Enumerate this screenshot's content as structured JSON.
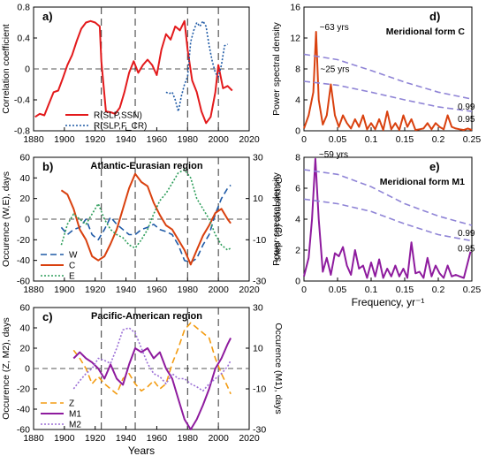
{
  "figure": {
    "panels": [
      {
        "id": "a",
        "tag": "a)"
      },
      {
        "id": "b",
        "tag": "b)"
      },
      {
        "id": "c",
        "tag": "c)"
      },
      {
        "id": "d",
        "tag": "d)"
      },
      {
        "id": "e",
        "tag": "e)"
      }
    ],
    "vlines": [
      1924,
      1946,
      1980,
      2000
    ],
    "colors": {
      "red": "#e31a1c",
      "orange_red": "#d9410f",
      "blue": "#1f5aa6",
      "teal": "#1b7f8c",
      "green": "#2e9e5b",
      "orange": "#f39c12",
      "purple": "#8e1b9e",
      "lavender": "#9b6fd6",
      "sig": "#8f84d6",
      "dash": "#555555"
    }
  },
  "chart_data": [
    {
      "id": "a",
      "type": "line",
      "panel_label": "a)",
      "title": "",
      "xlabel": "",
      "ylabel": "Correlation coefficient",
      "xlim": [
        1880,
        2020
      ],
      "ylim": [
        -0.8,
        0.8
      ],
      "x_ticks": [
        "1880",
        "1900",
        "1920",
        "1940",
        "1960",
        "1980",
        "2000",
        "2020"
      ],
      "y_ticks": [
        "-0.8",
        "-0.4",
        "0",
        "0.4",
        "0.8"
      ],
      "legend_position": "bottom-left",
      "series": [
        {
          "name": "R(SLP,SSN)",
          "style": "solid",
          "color": "#e31a1c",
          "x": [
            1881,
            1884,
            1887,
            1890,
            1893,
            1896,
            1899,
            1902,
            1905,
            1908,
            1911,
            1914,
            1917,
            1920,
            1923,
            1924,
            1927,
            1930,
            1933,
            1936,
            1939,
            1942,
            1945,
            1948,
            1951,
            1954,
            1957,
            1960,
            1963,
            1966,
            1969,
            1972,
            1975,
            1978,
            1980,
            1983,
            1986,
            1989,
            1992,
            1995,
            1998,
            2000,
            2003,
            2006,
            2009
          ],
          "y": [
            -0.62,
            -0.58,
            -0.6,
            -0.45,
            -0.3,
            -0.28,
            -0.12,
            0.05,
            0.18,
            0.36,
            0.52,
            0.6,
            0.62,
            0.6,
            0.55,
            0.1,
            -0.55,
            -0.56,
            -0.58,
            -0.5,
            -0.3,
            -0.05,
            0.1,
            -0.05,
            0.05,
            0.12,
            0.05,
            -0.08,
            0.25,
            0.45,
            0.38,
            0.55,
            0.5,
            0.62,
            0.25,
            -0.15,
            -0.3,
            -0.55,
            -0.7,
            -0.62,
            -0.3,
            0.05,
            -0.25,
            -0.22,
            -0.28
          ]
        },
        {
          "name": "R(SLP,F_CR)",
          "style": "dotted",
          "color": "#1f5aa6",
          "x": [
            1966,
            1968,
            1970,
            1972,
            1974,
            1976,
            1978,
            1980,
            1982,
            1984,
            1986,
            1988,
            1990,
            1992,
            1994,
            1996,
            1998,
            2000,
            2002,
            2004,
            2006
          ],
          "y": [
            -0.3,
            -0.32,
            -0.3,
            -0.4,
            -0.55,
            -0.35,
            -0.2,
            -0.1,
            0.35,
            0.5,
            0.6,
            0.55,
            0.62,
            0.55,
            0.3,
            0.1,
            -0.05,
            -0.1,
            0.05,
            0.3,
            0.32
          ]
        }
      ]
    },
    {
      "id": "b",
      "type": "line",
      "panel_label": "b)",
      "title": "Atlantic-Eurasian region",
      "xlabel": "",
      "ylabel": "Occurence (W,E), days",
      "y2label": "Occurence (C), days",
      "xlim": [
        1880,
        2020
      ],
      "ylim": [
        -60,
        60
      ],
      "y2lim": [
        -30,
        30
      ],
      "x_ticks": [
        "1880",
        "1900",
        "1920",
        "1940",
        "1960",
        "1980",
        "2000",
        "2020"
      ],
      "y_ticks": [
        "-60",
        "-40",
        "-20",
        "0",
        "20",
        "40",
        "60"
      ],
      "y2_ticks": [
        "-30",
        "-10",
        "10",
        "30"
      ],
      "legend_position": "bottom-left",
      "series": [
        {
          "name": "W",
          "style": "dashed",
          "color": "#1f5aa6",
          "axis": "left",
          "x": [
            1898,
            1902,
            1906,
            1910,
            1914,
            1918,
            1922,
            1926,
            1930,
            1934,
            1938,
            1942,
            1946,
            1950,
            1954,
            1958,
            1962,
            1966,
            1970,
            1974,
            1978,
            1982,
            1986,
            1990,
            1994,
            1998,
            2002,
            2006,
            2008
          ],
          "y": [
            -8,
            -15,
            -10,
            -8,
            0,
            -15,
            -20,
            -10,
            2,
            -5,
            -10,
            -15,
            -15,
            -10,
            -8,
            -5,
            -10,
            -12,
            -15,
            -25,
            -40,
            -42,
            -38,
            -25,
            -15,
            5,
            20,
            30,
            33
          ]
        },
        {
          "name": "C",
          "style": "solid",
          "color": "#d9410f",
          "axis": "right",
          "x": [
            1898,
            1902,
            1906,
            1910,
            1914,
            1918,
            1922,
            1926,
            1930,
            1934,
            1938,
            1942,
            1946,
            1950,
            1954,
            1958,
            1962,
            1966,
            1970,
            1974,
            1978,
            1982,
            1986,
            1990,
            1994,
            1998,
            2002,
            2006,
            2008
          ],
          "y": [
            14,
            12,
            5,
            -5,
            -10,
            -18,
            -20,
            -18,
            -12,
            -5,
            5,
            15,
            22,
            18,
            16,
            8,
            2,
            -3,
            -5,
            -10,
            -15,
            -22,
            -15,
            -8,
            -3,
            3,
            5,
            0,
            -2
          ]
        },
        {
          "name": "E",
          "style": "dotted",
          "color": "#2e9e5b",
          "axis": "left",
          "x": [
            1898,
            1902,
            1906,
            1910,
            1914,
            1918,
            1922,
            1926,
            1930,
            1934,
            1938,
            1942,
            1946,
            1950,
            1954,
            1958,
            1962,
            1966,
            1970,
            1974,
            1978,
            1982,
            1986,
            1990,
            1994,
            1998,
            2002,
            2006,
            2008
          ],
          "y": [
            -25,
            -5,
            5,
            0,
            -5,
            5,
            15,
            0,
            -10,
            -15,
            -18,
            -25,
            -28,
            -20,
            -10,
            5,
            18,
            25,
            35,
            45,
            48,
            40,
            20,
            10,
            0,
            -15,
            -25,
            -30,
            -28
          ]
        }
      ]
    },
    {
      "id": "c",
      "type": "line",
      "panel_label": "c)",
      "title": "Pacific-American region",
      "xlabel": "Years",
      "ylabel": "Occurence (Z, M2), days",
      "y2label": "Occurence (M1), days",
      "xlim": [
        1880,
        2020
      ],
      "ylim": [
        -60,
        60
      ],
      "y2lim": [
        -30,
        30
      ],
      "x_ticks": [
        "1880",
        "1900",
        "1920",
        "1940",
        "1960",
        "1980",
        "2000",
        "2020"
      ],
      "y_ticks": [
        "-60",
        "-40",
        "-20",
        "0",
        "20",
        "40",
        "60"
      ],
      "y2_ticks": [
        "-30",
        "-10",
        "10",
        "30"
      ],
      "legend_position": "bottom-left",
      "series": [
        {
          "name": "Z",
          "style": "dashed",
          "color": "#f39c12",
          "axis": "left",
          "x": [
            1906,
            1910,
            1914,
            1918,
            1922,
            1926,
            1930,
            1934,
            1938,
            1942,
            1946,
            1950,
            1954,
            1958,
            1962,
            1966,
            1970,
            1974,
            1978,
            1982,
            1986,
            1990,
            1994,
            1998,
            2002,
            2006,
            2008
          ],
          "y": [
            18,
            10,
            0,
            -15,
            -8,
            -15,
            -20,
            -25,
            -10,
            -5,
            -15,
            -22,
            -18,
            -12,
            -20,
            -15,
            5,
            20,
            38,
            45,
            40,
            35,
            30,
            10,
            -5,
            -18,
            -25
          ]
        },
        {
          "name": "M1",
          "style": "solid",
          "color": "#8e1b9e",
          "axis": "right",
          "x": [
            1906,
            1910,
            1914,
            1918,
            1922,
            1926,
            1930,
            1934,
            1938,
            1942,
            1946,
            1950,
            1954,
            1958,
            1962,
            1966,
            1970,
            1974,
            1978,
            1982,
            1986,
            1990,
            1994,
            1998,
            2002,
            2006,
            2008
          ],
          "y": [
            5,
            8,
            5,
            3,
            0,
            -5,
            2,
            -5,
            -8,
            2,
            10,
            8,
            10,
            5,
            8,
            0,
            -5,
            -15,
            -25,
            -30,
            -25,
            -18,
            -10,
            0,
            5,
            12,
            15
          ]
        },
        {
          "name": "M2",
          "style": "dotted",
          "color": "#9b6fd6",
          "axis": "left",
          "x": [
            1906,
            1910,
            1914,
            1918,
            1922,
            1926,
            1930,
            1934,
            1938,
            1942,
            1946,
            1950,
            1954,
            1958,
            1962,
            1966,
            1970,
            1974,
            1978,
            1982,
            1986,
            1990,
            1994,
            1998,
            2002,
            2006,
            2008
          ],
          "y": [
            -20,
            -12,
            -5,
            0,
            10,
            8,
            5,
            20,
            38,
            40,
            35,
            20,
            5,
            -5,
            -8,
            -15,
            -5,
            -10,
            -10,
            -15,
            -18,
            -22,
            -15,
            -10,
            -5,
            2,
            8
          ]
        }
      ]
    },
    {
      "id": "d",
      "type": "line",
      "panel_label": "d)",
      "title": "Meridional form C",
      "xlabel": "",
      "ylabel": "Power spectral density",
      "xlim": [
        0,
        0.25
      ],
      "ylim": [
        0,
        16
      ],
      "x_ticks": [
        "0",
        "0.05",
        "0.1",
        "0.15",
        "0.2",
        "0.25"
      ],
      "y_ticks": [
        "0",
        "4",
        "8",
        "12",
        "16"
      ],
      "annotations": [
        "~63 yrs",
        "~25 yrs",
        "0.99",
        "0.95"
      ],
      "series": [
        {
          "name": "",
          "style": "solid",
          "color": "#d9410f",
          "x": [
            0.0,
            0.007,
            0.014,
            0.018,
            0.022,
            0.028,
            0.034,
            0.04,
            0.046,
            0.052,
            0.058,
            0.064,
            0.07,
            0.076,
            0.082,
            0.088,
            0.094,
            0.1,
            0.106,
            0.112,
            0.118,
            0.124,
            0.13,
            0.136,
            0.142,
            0.148,
            0.154,
            0.16,
            0.166,
            0.172,
            0.178,
            0.184,
            0.19,
            0.196,
            0.202,
            0.208,
            0.214,
            0.22,
            0.226,
            0.232,
            0.238,
            0.244,
            0.25
          ],
          "y": [
            0.3,
            2.0,
            5.0,
            12.8,
            4.0,
            0.8,
            2.0,
            6.0,
            2.0,
            0.5,
            2.0,
            1.0,
            0.3,
            1.5,
            0.5,
            2.0,
            0.2,
            1.0,
            0.2,
            1.5,
            0.1,
            2.5,
            0.2,
            1.0,
            0.1,
            2.0,
            0.5,
            1.5,
            0.1,
            0.2,
            0.3,
            1.0,
            0.2,
            1.0,
            0.5,
            0.2,
            2.0,
            0.5,
            0.3,
            0.2,
            0.1,
            0.3,
            0.1
          ]
        },
        {
          "name": "0.99",
          "style": "dashed",
          "color": "#8f84d6",
          "x": [
            0.0,
            0.05,
            0.1,
            0.15,
            0.2,
            0.25
          ],
          "y": [
            9.9,
            9.2,
            7.8,
            6.3,
            5.0,
            4.1
          ]
        },
        {
          "name": "0.95",
          "style": "dashed",
          "color": "#8f84d6",
          "x": [
            0.0,
            0.05,
            0.1,
            0.15,
            0.2,
            0.25
          ],
          "y": [
            6.4,
            5.9,
            5.0,
            4.0,
            3.1,
            2.5
          ]
        }
      ]
    },
    {
      "id": "e",
      "type": "line",
      "panel_label": "e)",
      "title": "Meridional form M1",
      "xlabel": "Frequency, yr⁻¹",
      "ylabel": "Power spectral density",
      "xlim": [
        0,
        0.25
      ],
      "ylim": [
        0,
        8
      ],
      "x_ticks": [
        "0",
        "0.05",
        "0.1",
        "0.15",
        "0.2",
        "0.25"
      ],
      "y_ticks": [
        "0",
        "2",
        "4",
        "6",
        "8"
      ],
      "annotations": [
        "~59 yrs",
        "0.99",
        "0.95"
      ],
      "series": [
        {
          "name": "",
          "style": "solid",
          "color": "#8e1b9e",
          "x": [
            0.0,
            0.007,
            0.012,
            0.017,
            0.022,
            0.028,
            0.034,
            0.04,
            0.046,
            0.052,
            0.058,
            0.064,
            0.07,
            0.076,
            0.082,
            0.088,
            0.094,
            0.1,
            0.106,
            0.112,
            0.118,
            0.124,
            0.13,
            0.136,
            0.142,
            0.148,
            0.154,
            0.16,
            0.166,
            0.172,
            0.178,
            0.184,
            0.19,
            0.196,
            0.202,
            0.208,
            0.214,
            0.22,
            0.226,
            0.232,
            0.238,
            0.244,
            0.248
          ],
          "y": [
            0.3,
            1.5,
            4.0,
            7.9,
            4.0,
            0.6,
            1.5,
            0.4,
            1.8,
            1.6,
            2.2,
            1.0,
            0.4,
            2.0,
            0.8,
            1.0,
            0.2,
            1.2,
            0.3,
            1.4,
            0.2,
            0.8,
            0.3,
            1.0,
            0.3,
            0.8,
            0.2,
            2.5,
            0.5,
            0.6,
            0.2,
            1.5,
            0.3,
            1.0,
            0.5,
            0.2,
            1.0,
            0.3,
            0.4,
            0.3,
            0.2,
            1.2,
            1.9
          ]
        },
        {
          "name": "0.99",
          "style": "dashed",
          "color": "#8f84d6",
          "x": [
            0.0,
            0.05,
            0.1,
            0.15,
            0.2,
            0.25
          ],
          "y": [
            7.2,
            6.9,
            6.1,
            5.0,
            4.2,
            3.6
          ]
        },
        {
          "name": "0.95",
          "style": "dashed",
          "color": "#8f84d6",
          "x": [
            0.0,
            0.05,
            0.1,
            0.15,
            0.2,
            0.25
          ],
          "y": [
            5.3,
            5.0,
            4.5,
            3.7,
            3.0,
            2.6
          ]
        }
      ]
    }
  ]
}
